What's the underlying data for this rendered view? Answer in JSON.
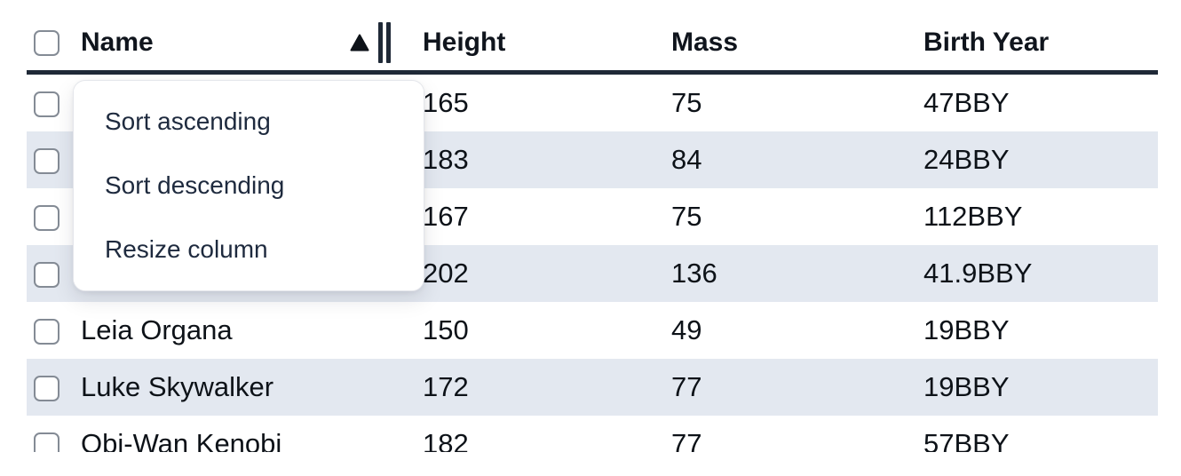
{
  "table": {
    "columns": [
      "Name",
      "Height",
      "Mass",
      "Birth Year"
    ],
    "sorted_column": "Name",
    "sort_direction": "ascending",
    "rows": [
      {
        "name": "",
        "height": "165",
        "mass": "75",
        "birth_year": "47BBY"
      },
      {
        "name": "",
        "height": "183",
        "mass": "84",
        "birth_year": "24BBY"
      },
      {
        "name": "",
        "height": "167",
        "mass": "75",
        "birth_year": "112BBY"
      },
      {
        "name": "",
        "height": "202",
        "mass": "136",
        "birth_year": "41.9BBY"
      },
      {
        "name": "Leia Organa",
        "height": "150",
        "mass": "49",
        "birth_year": "19BBY"
      },
      {
        "name": "Luke Skywalker",
        "height": "172",
        "mass": "77",
        "birth_year": "19BBY"
      },
      {
        "name": "Obi-Wan Kenobi",
        "height": "182",
        "mass": "77",
        "birth_year": "57BBY"
      }
    ]
  },
  "column_menu": {
    "items": [
      {
        "id": "sort-ascending",
        "label": "Sort ascending"
      },
      {
        "id": "sort-descending",
        "label": "Sort descending"
      },
      {
        "id": "resize-column",
        "label": "Resize column"
      }
    ]
  },
  "icons": {
    "sort_ascending": "triangle-up",
    "column_resize": "double-vertical-bar"
  },
  "colors": {
    "header_border": "#1f2937",
    "row_stripe": "#e3e8f0",
    "menu_text": "#1e2a3e",
    "text": "#0d1218"
  }
}
